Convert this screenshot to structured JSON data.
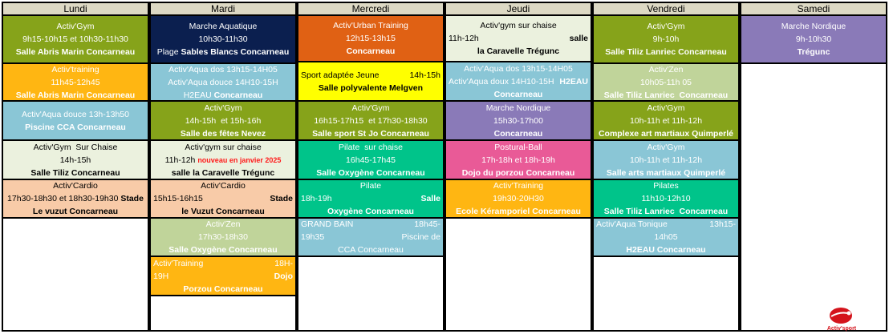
{
  "colors": {
    "header": "#ddd9c4",
    "olive": "#86a31a",
    "navy": "#0b1f4f",
    "amber": "#ffb612",
    "aqua": "#8ac6d6",
    "cream": "#ebf1de",
    "peach": "#f8cba8",
    "sage": "#c0d49a",
    "rust": "#e06114",
    "yellow": "#ffff00",
    "purple": "#8a7ab8",
    "teal": "#00c48a",
    "pink": "#e95a97"
  },
  "days": [
    {
      "name": "Lundi",
      "cells": [
        {
          "bg": "olive",
          "fg": "#fff",
          "h": 60,
          "lines": [
            [
              {
                "t": "Activ'Gym"
              }
            ],
            [
              {
                "t": "9h15-10h15 et 10h30-11h30"
              }
            ],
            [
              {
                "t": "Salle Abris Marin Concarneau",
                "b": 1
              }
            ]
          ]
        },
        {
          "bg": "amber",
          "fg": "#fff",
          "h": 47,
          "lines": [
            [
              {
                "t": "Activ'training"
              }
            ],
            [
              {
                "t": "11h45-12h45"
              }
            ],
            [
              {
                "t": "Salle Abris Marin Concarneau",
                "b": 1
              }
            ]
          ]
        },
        {
          "bg": "aqua",
          "fg": "#fff",
          "h": 49,
          "lines": [
            [
              {
                "t": "Activ'Aqua douce 13h-13h50"
              }
            ],
            [
              {
                "t": "Piscine CCA Concarneau",
                "b": 1
              }
            ]
          ]
        },
        {
          "bg": "cream",
          "fg": "#000",
          "h": 49,
          "lines": [
            [
              {
                "t": "Activ'Gym  Sur Chaise"
              }
            ],
            [
              {
                "t": "14h-15h"
              }
            ],
            [
              {
                "t": "Salle Tiliz Concarneau",
                "b": 1
              }
            ]
          ]
        },
        {
          "bg": "peach",
          "fg": "#000",
          "h": 48,
          "lines": [
            [
              {
                "t": "Activ'Cardio"
              }
            ],
            [
              {
                "t": "17h30-18h30 et 18h30-19h30 "
              },
              {
                "t": "Stade",
                "b": 1
              }
            ],
            [
              {
                "t": "Le vuzut Concarneau",
                "b": 1
              }
            ]
          ]
        }
      ]
    },
    {
      "name": "Mardi",
      "cells": [
        {
          "bg": "navy",
          "fg": "#fff",
          "h": 60,
          "lines": [
            [
              {
                "t": "Marche Aquatique"
              }
            ],
            [
              {
                "t": "10h30-11h30"
              }
            ],
            [
              {
                "t": "Plage "
              },
              {
                "t": "Sables Blancs Concarneau",
                "b": 1
              }
            ]
          ]
        },
        {
          "bg": "aqua",
          "fg": "#fff",
          "h": 47,
          "lines": [
            [
              {
                "t": "Activ'Aqua dos 13h15-14H05"
              }
            ],
            [
              {
                "t": "Activ'Aqua douce 14H10-15H"
              }
            ],
            [
              {
                "t": "H2EAU "
              },
              {
                "t": "Concarneau",
                "b": 1
              }
            ]
          ]
        },
        {
          "bg": "olive",
          "fg": "#fff",
          "h": 49,
          "lines": [
            [
              {
                "t": "Activ'Gym"
              }
            ],
            [
              {
                "t": "14h-15h  et 15h-16h"
              }
            ],
            [
              {
                "t": "Salle des fêtes Nevez",
                "b": 1
              }
            ]
          ]
        },
        {
          "bg": "cream",
          "fg": "#000",
          "h": 49,
          "lines": [
            [
              {
                "t": "Activ'gym sur chaise"
              }
            ],
            [
              {
                "t": "11h-12h "
              },
              {
                "t": "nouveau en janvier 2025",
                "red": 1
              }
            ],
            [
              {
                "t": "salle la Caravelle Trégunc",
                "b": 1
              }
            ]
          ]
        },
        {
          "bg": "peach",
          "fg": "#000",
          "h": 48,
          "lines": [
            [
              {
                "t": "Activ'Cardio"
              }
            ],
            {
              "l": [
                {
                  "t": "15h15-16h15"
                }
              ],
              "r": [
                {
                  "t": "Stade",
                  "b": 1
                }
              ]
            },
            [
              {
                "t": "le Vuzut Concarneau",
                "b": 1
              }
            ]
          ]
        },
        {
          "bg": "sage",
          "fg": "#fff",
          "h": 48,
          "lines": [
            [
              {
                "t": "Activ'Zen"
              }
            ],
            [
              {
                "t": "17h30-18h30"
              }
            ],
            [
              {
                "t": "Salle Oxygène Concarneau",
                "b": 1
              }
            ]
          ]
        },
        {
          "bg": "amber",
          "fg": "#fff",
          "h": 49,
          "lines": [
            {
              "l": [
                {
                  "t": "Activ'Training"
                }
              ],
              "r": [
                {
                  "t": "18H-"
                }
              ]
            },
            {
              "l": [
                {
                  "t": "19H"
                }
              ],
              "r": [
                {
                  "t": "Dojo",
                  "b": 1
                }
              ]
            },
            [
              {
                "t": "Porzou Concarneau",
                "b": 1
              }
            ]
          ]
        }
      ]
    },
    {
      "name": "Mercredi",
      "cells": [
        {
          "bg": "rust",
          "fg": "#fff",
          "h": 58,
          "lines": [
            [
              {
                "t": "Activ'Urban Training"
              }
            ],
            [
              {
                "t": "12h15-13h15"
              }
            ],
            [
              {
                "t": "Concarneau",
                "b": 1
              }
            ]
          ]
        },
        {
          "bg": "yellow",
          "fg": "#000",
          "h": 49,
          "lines": [
            {
              "l": [
                {
                  "t": "Sport adaptée Jeune"
                }
              ],
              "r": [
                {
                  "t": "14h-15h"
                }
              ]
            },
            [
              {
                "t": "Salle polyvalente Melgven",
                "b": 1
              }
            ]
          ]
        },
        {
          "bg": "olive",
          "fg": "#fff",
          "h": 49,
          "lines": [
            [
              {
                "t": "Activ'Gym"
              }
            ],
            [
              {
                "t": "16h15-17h15  et 17h30-18h30"
              }
            ],
            [
              {
                "t": "Salle sport St Jo Concarneau",
                "b": 1
              }
            ]
          ]
        },
        {
          "bg": "teal",
          "fg": "#fff",
          "h": 49,
          "lines": [
            [
              {
                "t": "Pilate  sur chaise"
              }
            ],
            [
              {
                "t": "16h45-17h45"
              }
            ],
            [
              {
                "t": "Salle Oxygène Concarneau",
                "b": 1
              }
            ]
          ]
        },
        {
          "bg": "teal",
          "fg": "#fff",
          "h": 48,
          "lines": [
            [
              {
                "t": "Pilate"
              }
            ],
            {
              "l": [
                {
                  "t": "18h-19h"
                }
              ],
              "r": [
                {
                  "t": "Salle",
                  "b": 1
                }
              ]
            },
            [
              {
                "t": "Oxygène Concarneau",
                "b": 1
              }
            ]
          ]
        },
        {
          "bg": "aqua",
          "fg": "#fff",
          "h": 48,
          "lines": [
            {
              "l": [
                {
                  "t": "GRAND BAIN"
                }
              ],
              "r": [
                {
                  "t": "18h45-"
                }
              ]
            },
            {
              "l": [
                {
                  "t": "19h35"
                }
              ],
              "r": [
                {
                  "t": "Piscine de"
                }
              ]
            },
            [
              {
                "t": "CCA Concarneau"
              }
            ]
          ]
        }
      ]
    },
    {
      "name": "Jeudi",
      "cells": [
        {
          "bg": "cream",
          "fg": "#000",
          "h": 58,
          "lines": [
            [
              {
                "t": "Activ'gym sur chaise"
              }
            ],
            {
              "l": [
                {
                  "t": "11h-12h"
                }
              ],
              "r": [
                {
                  "t": "salle",
                  "b": 1
                }
              ]
            },
            [
              {
                "t": "la Caravelle Trégunc",
                "b": 1
              }
            ]
          ]
        },
        {
          "bg": "aqua",
          "fg": "#fff",
          "h": 49,
          "lines": [
            [
              {
                "t": "Activ'Aqua dos 13h15-14H05"
              }
            ],
            {
              "l": [
                {
                  "t": "Activ'Aqua doux 14H10-15H"
                }
              ],
              "r": [
                {
                  "t": "H2EAU",
                  "b": 1
                }
              ]
            },
            [
              {
                "t": "Concarneau",
                "b": 1
              }
            ]
          ]
        },
        {
          "bg": "purple",
          "fg": "#fff",
          "h": 49,
          "lines": [
            [
              {
                "t": "Marche Nordique"
              }
            ],
            [
              {
                "t": "15h30-17h00"
              }
            ],
            [
              {
                "t": "Concarneau",
                "b": 1
              }
            ]
          ]
        },
        {
          "bg": "pink",
          "fg": "#fff",
          "h": 49,
          "lines": [
            [
              {
                "t": "Postural-Ball"
              }
            ],
            [
              {
                "t": "17h-18h et 18h-19h"
              }
            ],
            [
              {
                "t": "Dojo du porzou Concarneau",
                "b": 1
              }
            ]
          ]
        },
        {
          "bg": "amber",
          "fg": "#fff",
          "h": 48,
          "lines": [
            [
              {
                "t": "Activ'Training"
              }
            ],
            [
              {
                "t": "19h30-20H30"
              }
            ],
            [
              {
                "t": "Ecole Kéramporiel Concarneau",
                "b": 1
              }
            ]
          ]
        }
      ]
    },
    {
      "name": "Vendredi",
      "cells": [
        {
          "bg": "olive",
          "fg": "#fff",
          "h": 60,
          "lines": [
            [
              {
                "t": "Activ'Gym"
              }
            ],
            [
              {
                "t": "9h-10h"
              }
            ],
            [
              {
                "t": "Salle Tiliz Lanriec Concarneau",
                "b": 1
              }
            ]
          ]
        },
        {
          "bg": "sage",
          "fg": "#fff",
          "h": 47,
          "lines": [
            [
              {
                "t": "Activ'Zen"
              }
            ],
            [
              {
                "t": "10h05-11h 05"
              }
            ],
            [
              {
                "t": "Salle Tiliz Lanriec  Concarneau",
                "b": 1
              }
            ]
          ]
        },
        {
          "bg": "olive",
          "fg": "#fff",
          "h": 49,
          "lines": [
            [
              {
                "t": "Activ'Gym"
              }
            ],
            [
              {
                "t": "10h-11h et 11h-12h"
              }
            ],
            [
              {
                "t": "Complexe art martiaux Quimperlé",
                "b": 1
              }
            ]
          ]
        },
        {
          "bg": "aqua",
          "fg": "#fff",
          "h": 49,
          "lines": [
            [
              {
                "t": "Activ'Gym"
              }
            ],
            [
              {
                "t": "10h-11h et 11h-12h"
              }
            ],
            [
              {
                "t": "Salle arts martiaux Quimperlé",
                "b": 1
              }
            ]
          ]
        },
        {
          "bg": "teal",
          "fg": "#fff",
          "h": 48,
          "lines": [
            [
              {
                "t": "Pilates"
              }
            ],
            [
              {
                "t": "11h10-12h10"
              }
            ],
            [
              {
                "t": "Salle Tiliz Lanriec  Concarneau",
                "b": 1
              }
            ]
          ]
        },
        {
          "bg": "aqua",
          "fg": "#fff",
          "h": 48,
          "lines": [
            {
              "l": [
                {
                  "t": "Activ'Aqua Tonique"
                }
              ],
              "r": [
                {
                  "t": "13h15-"
                }
              ]
            },
            [
              {
                "t": "14h05"
              }
            ],
            [
              {
                "t": "H2EAU Concarneau",
                "b": 1
              }
            ]
          ]
        }
      ]
    },
    {
      "name": "Samedi",
      "cells": [
        {
          "bg": "purple",
          "fg": "#fff",
          "h": 60,
          "lines": [
            [
              {
                "t": "Marche Nordique"
              }
            ],
            [
              {
                "t": "9h-10h30"
              }
            ],
            [
              {
                "t": "Trégunc",
                "b": 1
              }
            ]
          ]
        }
      ]
    }
  ],
  "logo": {
    "text": "Activ'sport",
    "color": "#d4141c"
  }
}
